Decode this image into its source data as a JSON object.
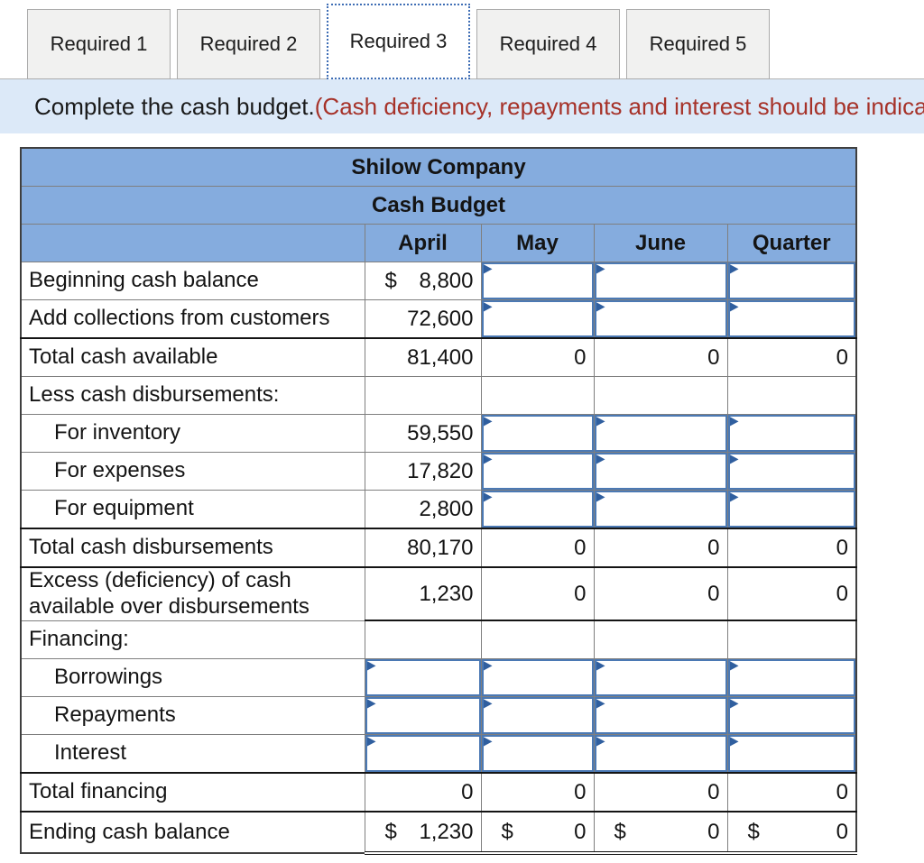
{
  "tabs": [
    {
      "label": "Required 1",
      "active": false
    },
    {
      "label": "Required 2",
      "active": false
    },
    {
      "label": "Required 3",
      "active": true
    },
    {
      "label": "Required 4",
      "active": false
    },
    {
      "label": "Required 5",
      "active": false
    }
  ],
  "instruction": {
    "normal": "Complete the cash budget. ",
    "highlight": "(Cash deficiency, repayments and interest should be indica"
  },
  "table": {
    "title": "Shilow Company",
    "subtitle": "Cash Budget",
    "columns": [
      "April",
      "May",
      "June",
      "Quarter"
    ],
    "rows": [
      {
        "label": "Beginning cash balance",
        "cells": [
          {
            "type": "value",
            "prefix": "$",
            "value": "8,800"
          },
          {
            "type": "input"
          },
          {
            "type": "input"
          },
          {
            "type": "input"
          }
        ]
      },
      {
        "label": "Add collections from customers",
        "cells": [
          {
            "type": "value",
            "value": "72,600"
          },
          {
            "type": "input"
          },
          {
            "type": "input"
          },
          {
            "type": "input"
          }
        ]
      },
      {
        "label": "Total cash available",
        "total": true,
        "cells": [
          {
            "type": "value",
            "value": "81,400"
          },
          {
            "type": "value",
            "value": "0"
          },
          {
            "type": "value",
            "value": "0"
          },
          {
            "type": "value",
            "value": "0"
          }
        ]
      },
      {
        "label": "Less cash disbursements:",
        "cells": [
          {
            "type": "empty"
          },
          {
            "type": "empty"
          },
          {
            "type": "empty"
          },
          {
            "type": "empty"
          }
        ]
      },
      {
        "label": "For inventory",
        "indent": true,
        "cells": [
          {
            "type": "value",
            "value": "59,550"
          },
          {
            "type": "input"
          },
          {
            "type": "input"
          },
          {
            "type": "input"
          }
        ]
      },
      {
        "label": "For expenses",
        "indent": true,
        "cells": [
          {
            "type": "value",
            "value": "17,820"
          },
          {
            "type": "input"
          },
          {
            "type": "input"
          },
          {
            "type": "input"
          }
        ]
      },
      {
        "label": "For equipment",
        "indent": true,
        "cells": [
          {
            "type": "value",
            "value": "2,800"
          },
          {
            "type": "input"
          },
          {
            "type": "input"
          },
          {
            "type": "input"
          }
        ]
      },
      {
        "label": "Total cash disbursements",
        "total": true,
        "cells": [
          {
            "type": "value",
            "value": "80,170"
          },
          {
            "type": "value",
            "value": "0"
          },
          {
            "type": "value",
            "value": "0"
          },
          {
            "type": "value",
            "value": "0"
          }
        ]
      },
      {
        "label_lines": [
          "Excess (deficiency) of cash",
          "available over disbursements"
        ],
        "total": true,
        "tall": true,
        "underline": "black",
        "cells": [
          {
            "type": "value",
            "value": "1,230"
          },
          {
            "type": "value",
            "value": "0"
          },
          {
            "type": "value",
            "value": "0"
          },
          {
            "type": "value",
            "value": "0"
          }
        ]
      },
      {
        "label": "Financing:",
        "cells": [
          {
            "type": "empty"
          },
          {
            "type": "empty"
          },
          {
            "type": "empty"
          },
          {
            "type": "empty"
          }
        ]
      },
      {
        "label": "Borrowings",
        "indent": true,
        "cells": [
          {
            "type": "input"
          },
          {
            "type": "input"
          },
          {
            "type": "input"
          },
          {
            "type": "input"
          }
        ]
      },
      {
        "label": "Repayments",
        "indent": true,
        "cells": [
          {
            "type": "input"
          },
          {
            "type": "input"
          },
          {
            "type": "input"
          },
          {
            "type": "input"
          }
        ]
      },
      {
        "label": "Interest",
        "indent": true,
        "cells": [
          {
            "type": "input"
          },
          {
            "type": "input"
          },
          {
            "type": "input"
          },
          {
            "type": "input"
          }
        ]
      },
      {
        "label": "Total financing",
        "total": true,
        "cells": [
          {
            "type": "value",
            "value": "0"
          },
          {
            "type": "value",
            "value": "0"
          },
          {
            "type": "value",
            "value": "0"
          },
          {
            "type": "value",
            "value": "0"
          }
        ]
      },
      {
        "label": "Ending cash balance",
        "total": true,
        "underline": "double",
        "cells": [
          {
            "type": "value",
            "prefix": "$",
            "value": "1,230"
          },
          {
            "type": "value",
            "prefix": "$",
            "value": "0"
          },
          {
            "type": "value",
            "prefix": "$",
            "value": "0"
          },
          {
            "type": "value",
            "prefix": "$",
            "value": "0"
          }
        ]
      }
    ]
  },
  "colors": {
    "header_blue": "#85acde",
    "input_border_blue": "#4b79b4",
    "marker_blue": "#305f9f",
    "instruction_bg": "#dce9f8",
    "instruction_red": "#a63229",
    "active_tab_outline": "#3f6eb5"
  }
}
